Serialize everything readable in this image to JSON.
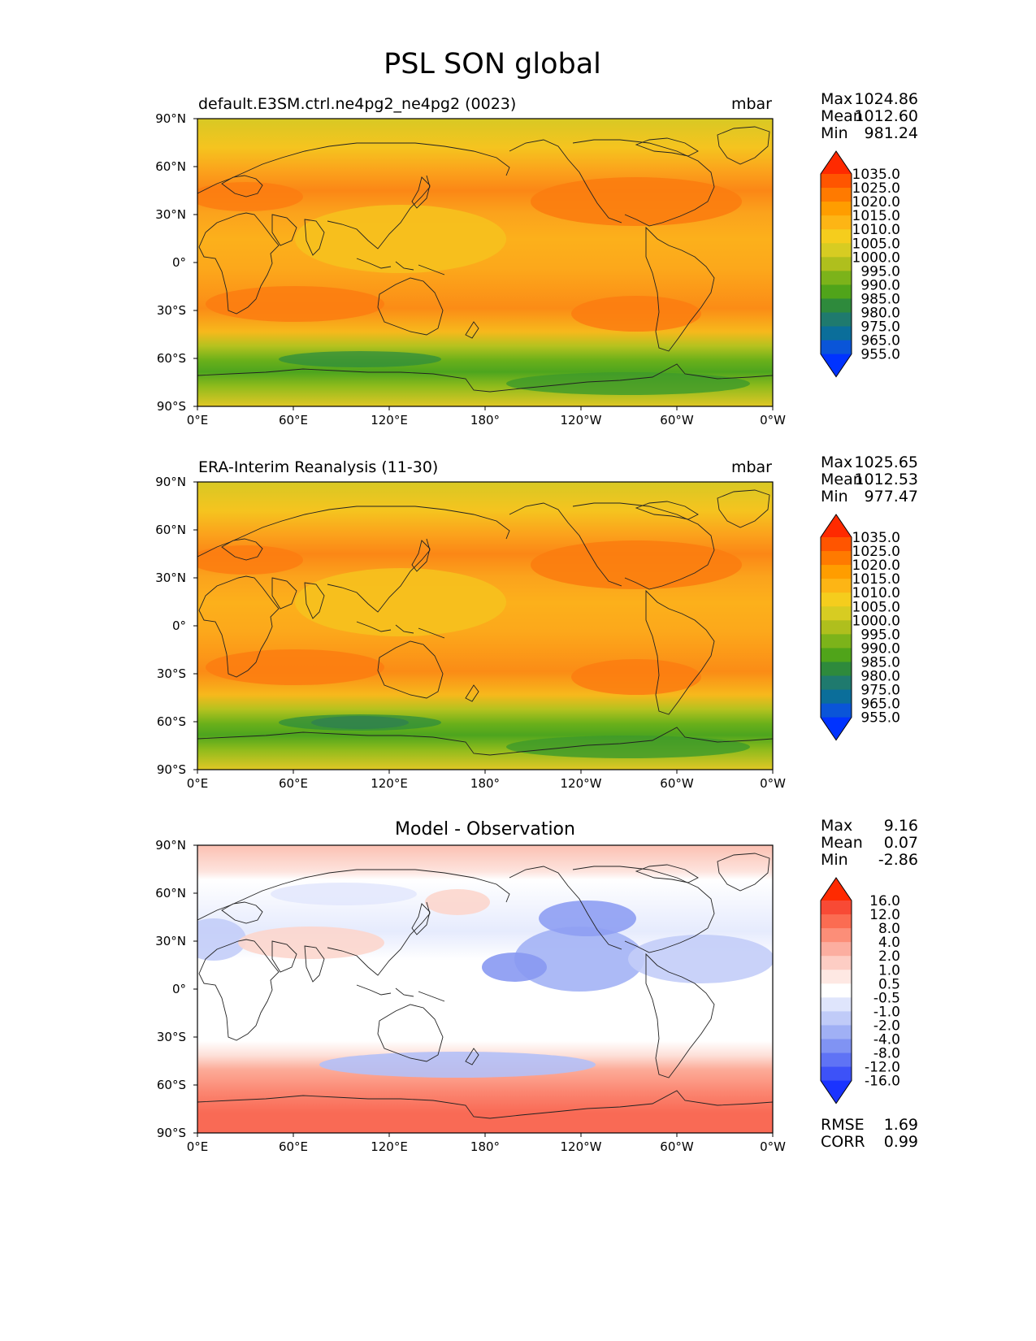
{
  "title": "PSL SON global",
  "lat_ticks": [
    "90°N",
    "60°N",
    "30°N",
    "0°",
    "30°S",
    "60°S",
    "90°S"
  ],
  "lon_ticks": [
    "0°E",
    "60°E",
    "120°E",
    "180°",
    "120°W",
    "60°W",
    "0°W"
  ],
  "stat_labels": {
    "max": "Max",
    "mean": "Mean",
    "min": "Min",
    "rmse": "RMSE",
    "corr": "CORR"
  },
  "panels": [
    {
      "id": "test",
      "left_title": "default.E3SM.ctrl.ne4pg2_ne4pg2 (0023)",
      "center_title": "",
      "units": "mbar",
      "stats": {
        "max": "1024.86",
        "mean": "1012.60",
        "min": "981.24"
      }
    },
    {
      "id": "reference",
      "left_title": "ERA-Interim Reanalysis (11-30)",
      "center_title": "",
      "units": "mbar",
      "stats": {
        "max": "1025.65",
        "mean": "1012.53",
        "min": "977.47"
      }
    },
    {
      "id": "difference",
      "left_title": "",
      "center_title": "Model - Observation",
      "units": "",
      "stats": {
        "max": "9.16",
        "mean": "0.07",
        "min": "-2.86",
        "rmse": "1.69",
        "corr": "0.99"
      }
    }
  ],
  "colorbars": {
    "field": {
      "labels": [
        "1035.0",
        "1025.0",
        "1020.0",
        "1015.0",
        "1010.0",
        "1005.0",
        "1000.0",
        "995.0",
        "990.0",
        "985.0",
        "980.0",
        "975.0",
        "965.0",
        "955.0"
      ],
      "colors": [
        "#ff2a00",
        "#ff5500",
        "#ff7a00",
        "#ff9d00",
        "#fdb515",
        "#f5cd1d",
        "#d7cc22",
        "#afbf1d",
        "#7cb31a",
        "#50a41a",
        "#2e8a3c",
        "#1f7a6e",
        "#0b6e9a",
        "#0a55d8",
        "#0033ff"
      ]
    },
    "diff": {
      "labels": [
        "16.0",
        "12.0",
        "8.0",
        "4.0",
        "2.0",
        "1.0",
        "0.5",
        "-0.5",
        "-1.0",
        "-2.0",
        "-4.0",
        "-8.0",
        "-12.0",
        "-16.0"
      ],
      "colors": [
        "#ff2a00",
        "#f84a35",
        "#fb6c52",
        "#fc8e78",
        "#fcaea0",
        "#fdcdc4",
        "#fee8e3",
        "#ffffff",
        "#dfe5fc",
        "#c0cbf8",
        "#a0b0f5",
        "#8093f3",
        "#5f73f5",
        "#3d52f8",
        "#1a33ff"
      ]
    }
  }
}
